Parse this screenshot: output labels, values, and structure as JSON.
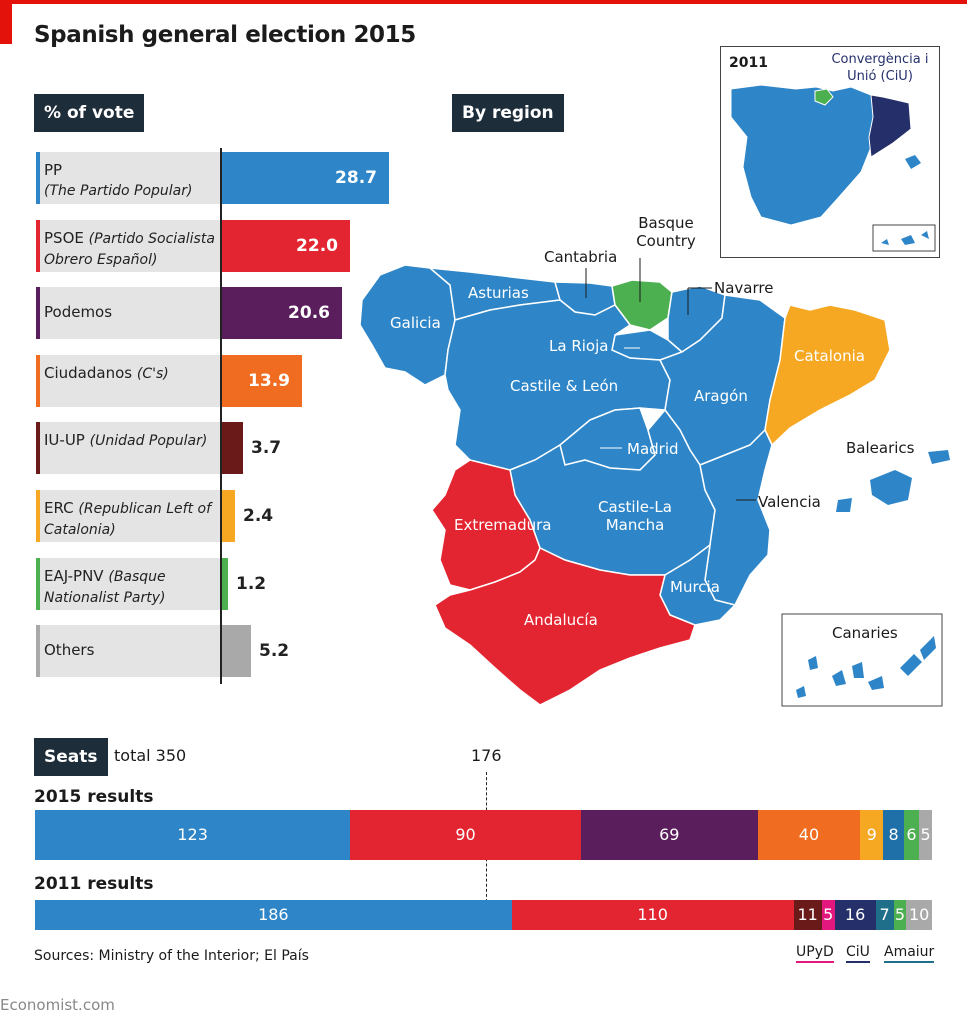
{
  "title": "Spanish general election 2015",
  "vote_panel_label": "% of vote",
  "region_panel_label": "By region",
  "chart_data": [
    {
      "type": "bar",
      "orientation": "horizontal",
      "title": "% of vote",
      "parties": [
        {
          "name": "PP",
          "full": "(The Partido Popular)",
          "value": 28.7,
          "color": "#2e86c8"
        },
        {
          "name": "PSOE",
          "full": "(Partido Socialista Obrero Español)",
          "value": 22.0,
          "color": "#e32531"
        },
        {
          "name": "Podemos",
          "full": "",
          "value": 20.6,
          "color": "#5a1e5c"
        },
        {
          "name": "Ciudadanos",
          "full": "(C's)",
          "value": 13.9,
          "color": "#ef6c21"
        },
        {
          "name": "IU-UP",
          "full": "(Unidad Popular)",
          "value": 3.7,
          "color": "#6b1a1a"
        },
        {
          "name": "ERC",
          "full": "(Republican Left of Catalonia)",
          "value": 2.4,
          "color": "#f7a823"
        },
        {
          "name": "EAJ-PNV",
          "full": "(Basque Nationalist Party)",
          "value": 1.2,
          "color": "#4caf50"
        },
        {
          "name": "Others",
          "full": "",
          "value": 5.2,
          "color": "#a9a9a9"
        }
      ],
      "labels": [
        "28.7",
        "22.0",
        "20.6",
        "13.9",
        "3.7",
        "2.4",
        "1.2",
        "5.2"
      ]
    },
    {
      "type": "bar",
      "orientation": "stacked-horizontal",
      "title": "Seats",
      "total_label": "total 350",
      "majority_label": "176",
      "majority": 176,
      "total": 350,
      "rows": [
        {
          "label": "2015 results",
          "segments": [
            {
              "value": 123,
              "color": "#2e86c8"
            },
            {
              "value": 90,
              "color": "#e32531"
            },
            {
              "value": 69,
              "color": "#5a1e5c"
            },
            {
              "value": 40,
              "color": "#ef6c21"
            },
            {
              "value": 9,
              "color": "#f7a823"
            },
            {
              "value": 8,
              "color": "#1f6fa8"
            },
            {
              "value": 6,
              "color": "#4caf50"
            },
            {
              "value": 5,
              "color": "#a9a9a9"
            }
          ]
        },
        {
          "label": "2011 results",
          "segments": [
            {
              "value": 186,
              "color": "#2e86c8"
            },
            {
              "value": 110,
              "color": "#e32531"
            },
            {
              "value": 11,
              "color": "#6b1a1a"
            },
            {
              "value": 5,
              "color": "#e2187e"
            },
            {
              "value": 16,
              "color": "#25306b"
            },
            {
              "value": 7,
              "color": "#1f6f8b"
            },
            {
              "value": 5,
              "color": "#4caf50"
            },
            {
              "value": 10,
              "color": "#a9a9a9"
            }
          ]
        }
      ],
      "annotations": [
        {
          "text": "UPyD",
          "color": "#e2187e"
        },
        {
          "text": "CiU",
          "color": "#25306b"
        },
        {
          "text": "Amaiur",
          "color": "#1f6f8b"
        }
      ]
    }
  ],
  "map": {
    "regions": [
      "Galicia",
      "Asturias",
      "Cantabria",
      "Basque Country",
      "Navarre",
      "La Rioja",
      "Castile & León",
      "Aragón",
      "Catalonia",
      "Madrid",
      "Balearics",
      "Extremadura",
      "Castile-La Mancha",
      "Valencia",
      "Murcia",
      "Andalucía",
      "Canaries"
    ],
    "inset_year": "2011",
    "inset_label": "Convergència i Unió (CiU)",
    "colors": {
      "PP": "#2e86c8",
      "PSOE": "#e32531",
      "ERC": "#f7a823",
      "PNV": "#4caf50",
      "CiU": "#25306b"
    }
  },
  "source": "Sources: Ministry of the Interior; El País",
  "footer": "Economist.com"
}
